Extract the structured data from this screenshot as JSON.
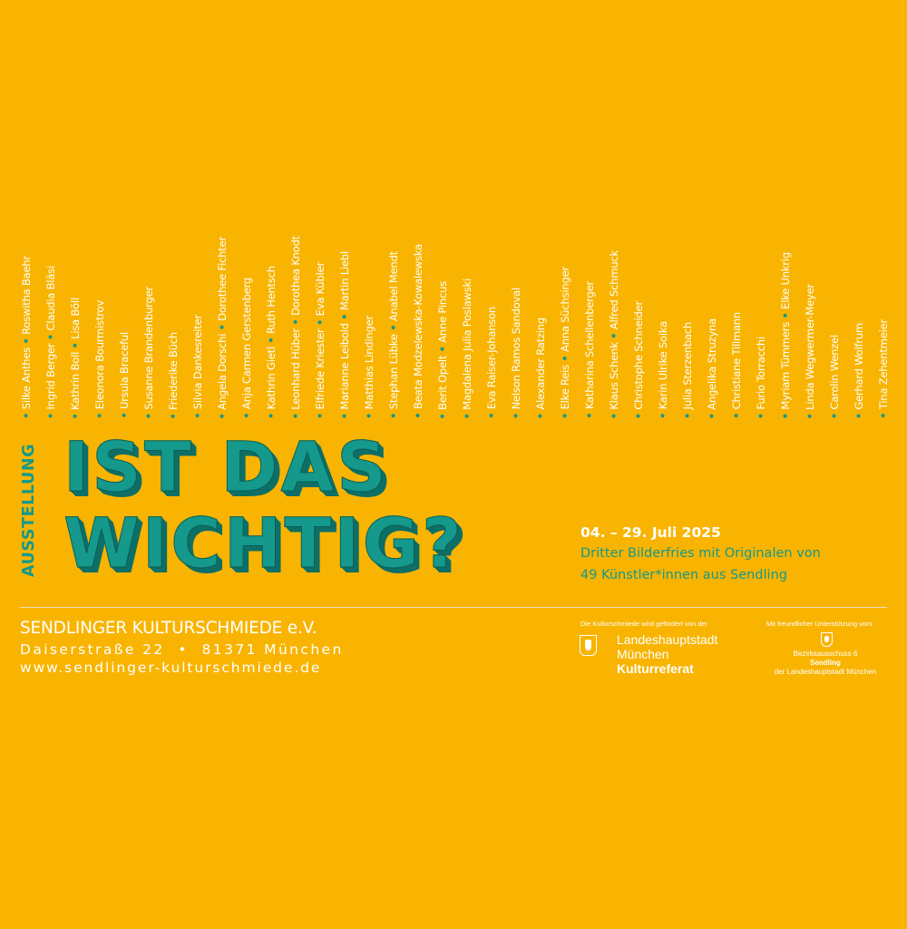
{
  "artists": [
    [
      "Silke Anthes",
      "Roswitha Baehr"
    ],
    [
      "Ingrid Berger",
      "Claudia Bläsi"
    ],
    [
      "Kathrin Boll",
      "Lisa Böll"
    ],
    [
      "Eleonora Bourmistrov"
    ],
    [
      "Ursula Braceful"
    ],
    [
      "Susanne Brandenburger"
    ],
    [
      "Friederike Büch"
    ],
    [
      "Silvia Dankesreiter"
    ],
    [
      "Angela Dorschi",
      "Dorothee Fichter"
    ],
    [
      "Anja Carmen Gerstenberg"
    ],
    [
      "Kathrin Gietl",
      "Ruth Hentsch"
    ],
    [
      "Leonhard Hüber",
      "Dorothea Knodt"
    ],
    [
      "Elfriede Kriester",
      "Eva Kübler"
    ],
    [
      "Marianne Leibold",
      "Martin Liebl"
    ],
    [
      "Matthias Lindinger"
    ],
    [
      "Stephan Lübke",
      "Anabel Mendt"
    ],
    [
      "Beata Modzelewska-Kowalewska"
    ],
    [
      "Berit Opelt",
      "Anne Pincus"
    ],
    [
      "Magdalena Julia Poslawski"
    ],
    [
      "Eva Raiser-Johanson"
    ],
    [
      "Nelson Ramos Sandoval"
    ],
    [
      "Alexander Ratzing"
    ],
    [
      "Elke Reis",
      "Anna Süchsinger"
    ],
    [
      "Katharina Schellenberger"
    ],
    [
      "Klaus Schenk",
      "Alfred Schmuck"
    ],
    [
      "Christophe Schneider"
    ],
    [
      "Karin Ulrike Soika"
    ],
    [
      "Julia Sterzenbach"
    ],
    [
      "Angelika Struzyna"
    ],
    [
      "Christiane Tillmann"
    ],
    [
      "Furio Torracchi"
    ],
    [
      "Myriam Tümmers",
      "Elke Unkrig"
    ],
    [
      "Linda Wegwermer-Meyer"
    ],
    [
      "Carolin Wenzel"
    ],
    [
      "Gerhard Wolfrum"
    ],
    [
      "Tina Zehentmeier"
    ]
  ],
  "bullet": "•",
  "ausstellung": "AUSSTELLUNG",
  "title": {
    "line1": "IST DAS",
    "line2": "WICHTIG?"
  },
  "dates": "04. – 29. Juli 2025",
  "description": {
    "line1": "Dritter Bilderfries mit Originalen von",
    "line2": "49 Künstler*innen aus Sendling"
  },
  "org": {
    "name": "SENDLINGER KULTURSCHMIEDE e.V.",
    "address": "Daiserstraße 22  •  81371 München",
    "web": "www.sendlinger-kulturschmiede.de"
  },
  "funder": {
    "label": "Die Kulturschmiede wird gefördert von der",
    "name1": "Landeshauptstadt",
    "name2": "München",
    "dept": "Kulturreferat"
  },
  "support": {
    "label": "Mit freundlicher Unterstützung vom",
    "line1": "Bezirksausschuss 6",
    "line2": "Sendling",
    "line3": "der Landeshauptstadt München"
  },
  "colors": {
    "background": "#F8B400",
    "teal": "#14998C",
    "white": "#FFFFFF"
  }
}
